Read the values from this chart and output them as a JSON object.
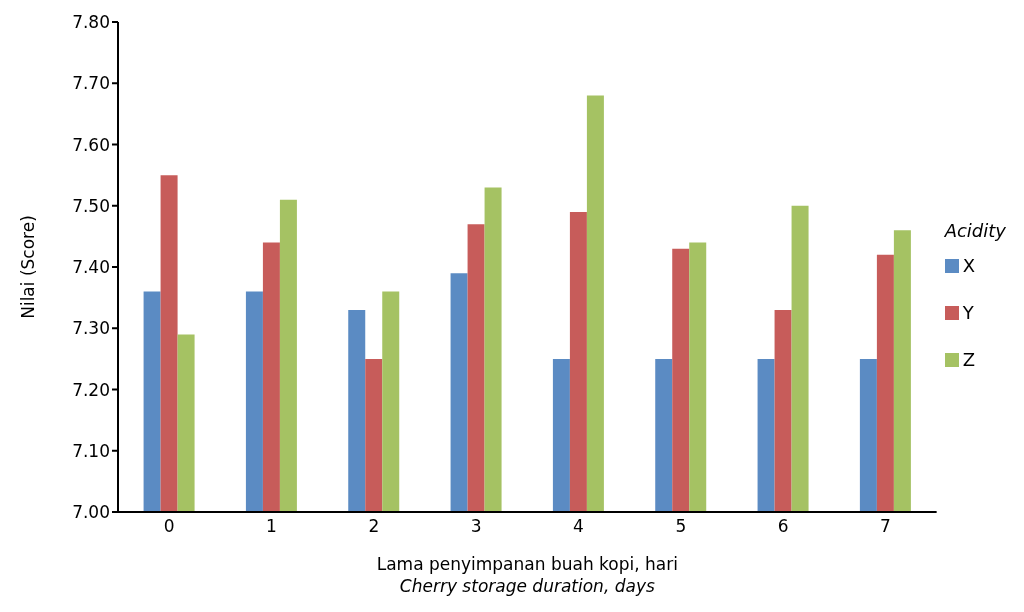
{
  "chart_data": {
    "type": "bar",
    "xlabel": "Lama penyimpanan buah kopi, hari\nCherry storage duration, days",
    "ylabel": "Nilai (Score)",
    "legend_title": "Acidity",
    "categories": [
      "0",
      "1",
      "2",
      "3",
      "4",
      "5",
      "6",
      "7"
    ],
    "series": [
      {
        "name": "X",
        "color": "#5b8bc3",
        "values": [
          7.36,
          7.36,
          7.33,
          7.39,
          7.25,
          7.25,
          7.25,
          7.25
        ]
      },
      {
        "name": "Y",
        "color": "#c75c5a",
        "values": [
          7.55,
          7.44,
          7.25,
          7.47,
          7.49,
          7.43,
          7.33,
          7.42
        ]
      },
      {
        "name": "Z",
        "color": "#a5c263",
        "values": [
          7.29,
          7.51,
          7.36,
          7.53,
          7.68,
          7.44,
          7.5,
          7.46
        ]
      }
    ],
    "ylim": [
      7.0,
      7.8
    ],
    "yticks": [
      {
        "value": 7.0,
        "label": "7.00"
      },
      {
        "value": 7.1,
        "label": "7.10"
      },
      {
        "value": 7.2,
        "label": "7.20"
      },
      {
        "value": 7.3,
        "label": "7.30"
      },
      {
        "value": 7.4,
        "label": "7.40"
      },
      {
        "value": 7.5,
        "label": "7.50"
      },
      {
        "value": 7.6,
        "label": "7.60"
      },
      {
        "value": 7.7,
        "label": "7.70"
      },
      {
        "value": 7.8,
        "label": "7.80"
      }
    ],
    "grid": false,
    "legend": "right"
  }
}
